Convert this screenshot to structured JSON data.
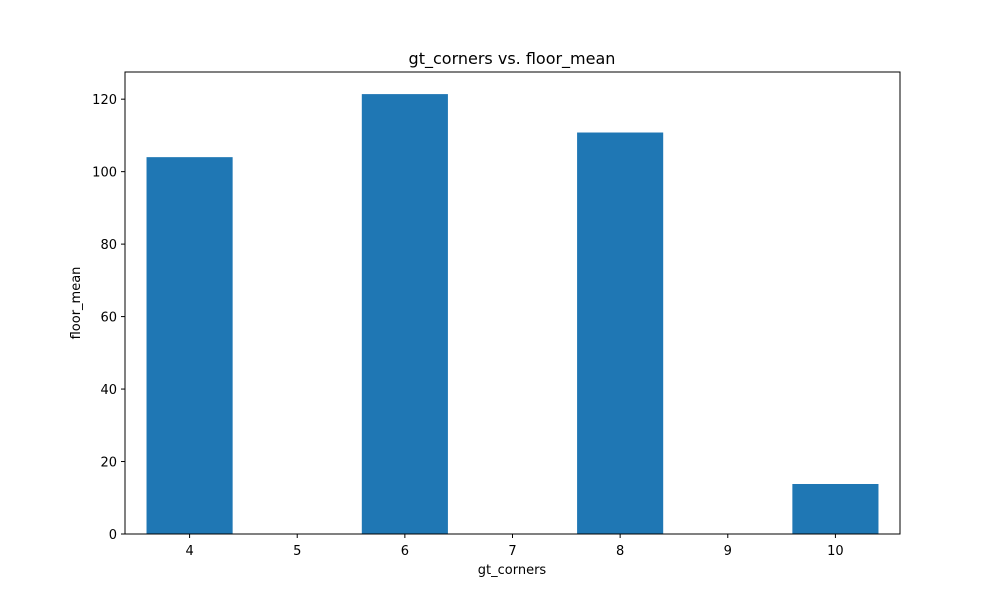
{
  "chart_data": {
    "type": "bar",
    "title": "gt_corners vs. floor_mean",
    "xlabel": "gt_corners",
    "ylabel": "floor_mean",
    "x_ticks": [
      4,
      5,
      6,
      7,
      8,
      9,
      10
    ],
    "x_tick_labels": [
      "4",
      "5",
      "6",
      "7",
      "8",
      "9",
      "10"
    ],
    "xlim": [
      3.4,
      10.6
    ],
    "ylim": [
      0,
      127.5
    ],
    "y_ticks": [
      0,
      20,
      40,
      60,
      80,
      100,
      120
    ],
    "y_tick_labels": [
      "0",
      "20",
      "40",
      "60",
      "80",
      "100",
      "120"
    ],
    "bar_width": 0.8,
    "categories": [
      4,
      6,
      8,
      10
    ],
    "values": [
      104,
      121.4,
      110.8,
      13.8
    ],
    "bar_color": "#1f77b4",
    "grid": false,
    "legend": "none"
  }
}
